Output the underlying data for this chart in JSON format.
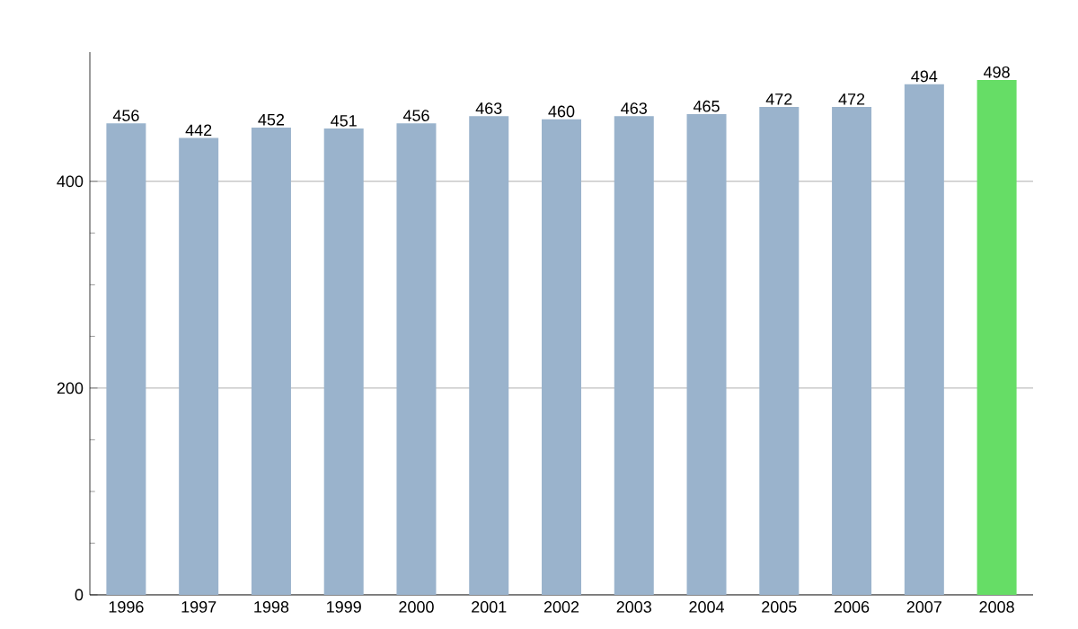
{
  "chart_data": {
    "type": "bar",
    "categories": [
      "1996",
      "1997",
      "1998",
      "1999",
      "2000",
      "2001",
      "2002",
      "2003",
      "2004",
      "2005",
      "2006",
      "2007",
      "2008"
    ],
    "values": [
      456,
      442,
      452,
      451,
      456,
      463,
      460,
      463,
      465,
      472,
      472,
      494,
      498
    ],
    "colors": [
      "#9ab3cc",
      "#9ab3cc",
      "#9ab3cc",
      "#9ab3cc",
      "#9ab3cc",
      "#9ab3cc",
      "#9ab3cc",
      "#9ab3cc",
      "#9ab3cc",
      "#9ab3cc",
      "#9ab3cc",
      "#9ab3cc",
      "#66dd66"
    ],
    "ylim": [
      0,
      525
    ],
    "yticks": [
      0,
      200,
      400
    ],
    "grid": "y",
    "data_labels": true
  }
}
